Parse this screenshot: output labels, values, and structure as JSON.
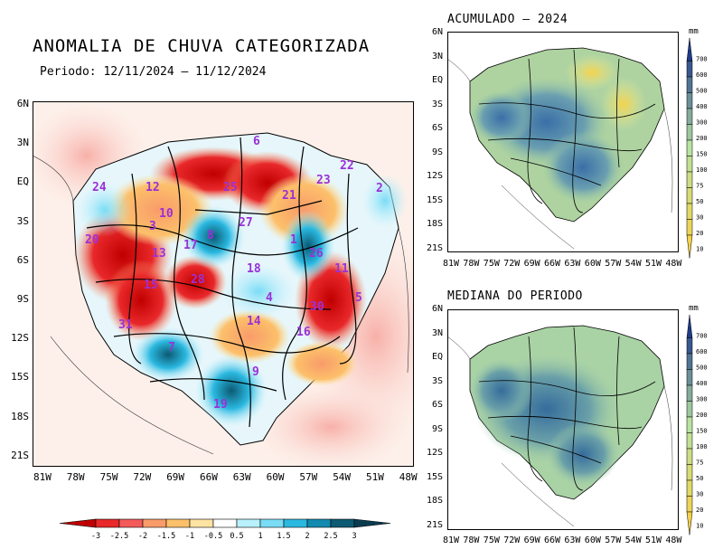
{
  "main": {
    "title": "ANOMALIA DE CHUVA CATEGORIZADA",
    "period": "Periodo: 12/11/2024 – 11/12/2024",
    "lat_ticks": [
      "6N",
      "3N",
      "EQ",
      "3S",
      "6S",
      "9S",
      "12S",
      "15S",
      "18S",
      "21S"
    ],
    "lon_ticks": [
      "81W",
      "78W",
      "75W",
      "72W",
      "69W",
      "66W",
      "63W",
      "60W",
      "57W",
      "54W",
      "51W",
      "48W"
    ],
    "basin_numbers": [
      "6",
      "22",
      "24",
      "12",
      "25",
      "23",
      "2",
      "21",
      "10",
      "3",
      "27",
      "20",
      "17",
      "8",
      "1",
      "26",
      "13",
      "18",
      "11",
      "15",
      "28",
      "4",
      "30",
      "14",
      "31",
      "16",
      "5",
      "9",
      "19",
      "7"
    ],
    "colorbar": {
      "labels": [
        "-3",
        "-2.5",
        "-2",
        "-1.5",
        "-1",
        "-0.5",
        "0.5",
        "1",
        "1.5",
        "2",
        "2.5",
        "3"
      ],
      "colors": [
        "#c00000",
        "#e8282a",
        "#f35a5a",
        "#f99b6a",
        "#fcc06a",
        "#fde3a2",
        "#ffffff",
        "#b8f0fc",
        "#7adcf5",
        "#2ab8e0",
        "#138ab0",
        "#0c5a73",
        "#0a3c50"
      ]
    }
  },
  "acumulado": {
    "title": "ACUMULADO – 2024",
    "lat_ticks": [
      "6N",
      "3N",
      "EQ",
      "3S",
      "6S",
      "9S",
      "12S",
      "15S",
      "18S",
      "21S"
    ],
    "lon_ticks": [
      "81W",
      "78W",
      "75W",
      "72W",
      "69W",
      "66W",
      "63W",
      "60W",
      "57W",
      "54W",
      "51W",
      "48W"
    ],
    "unit": "mm",
    "scale_labels": [
      "700",
      "600",
      "500",
      "400",
      "300",
      "200",
      "150",
      "100",
      "75",
      "50",
      "30",
      "20",
      "10"
    ]
  },
  "mediana": {
    "title": "MEDIANA DO PERIODO",
    "lat_ticks": [
      "6N",
      "3N",
      "EQ",
      "3S",
      "6S",
      "9S",
      "12S",
      "15S",
      "18S",
      "21S"
    ],
    "lon_ticks": [
      "81W",
      "78W",
      "75W",
      "72W",
      "69W",
      "66W",
      "63W",
      "60W",
      "57W",
      "54W",
      "51W",
      "48W"
    ],
    "unit": "mm",
    "scale_labels": [
      "700",
      "600",
      "500",
      "400",
      "300",
      "200",
      "150",
      "100",
      "75",
      "50",
      "30",
      "20",
      "10"
    ]
  },
  "colors": {
    "scale_low": "#f5d24a",
    "scale_mid": "#b8e3a2",
    "scale_high": "#1e3c8c"
  }
}
